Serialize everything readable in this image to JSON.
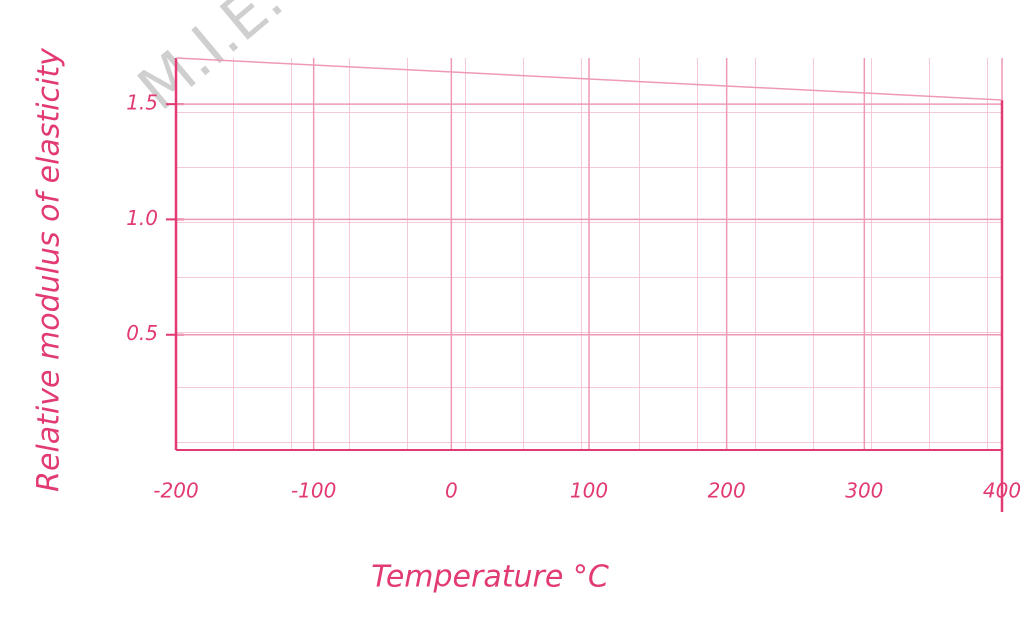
{
  "chart_data": {
    "type": "line",
    "watermark": "M.I.E.",
    "y_label": "Relative modulus of elasticity",
    "x_label": "Temperature °C",
    "xlim": [
      -200,
      400
    ],
    "xticks": [
      -200,
      -100,
      0,
      100,
      200,
      300,
      400
    ],
    "ylim": [
      0,
      1.7
    ],
    "yticks": [
      0.5,
      {
        "value": 1,
        "label": "1.0"
      },
      1.5
    ],
    "grid": true,
    "color": "#e23a72",
    "series": []
  }
}
